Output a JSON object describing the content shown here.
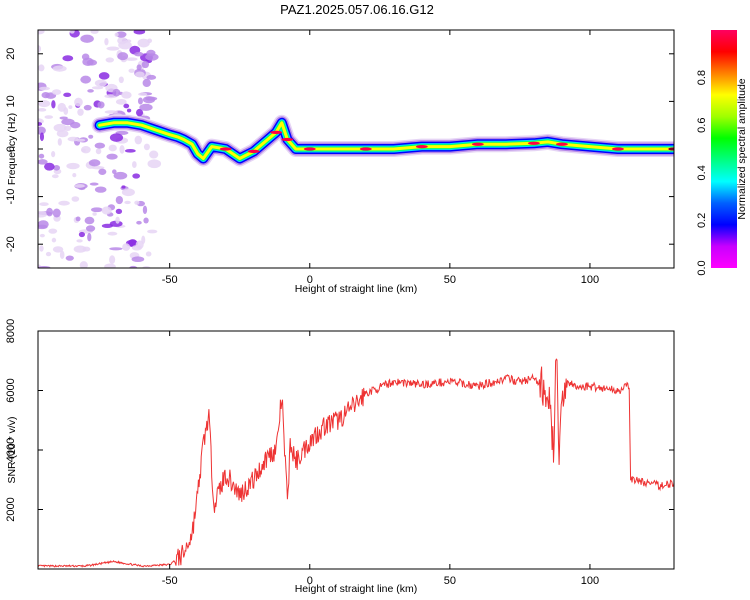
{
  "title": "PAZ1.2025.057.06.16.G12",
  "colors": {
    "snr_line": "#ee3333",
    "colormap": [
      "#ffffff",
      "#e6d5f5",
      "#b888e8",
      "#8a2be2",
      "#0000ff",
      "#00d8ff",
      "#00ff66",
      "#ffff00",
      "#ff6600",
      "#ff0044",
      "#ff00aa"
    ]
  },
  "chart_data": [
    {
      "type": "heatmap",
      "xlabel": "Height of straight line (km)",
      "ylabel": "Frequency (Hz)",
      "xlim": [
        -97,
        130
      ],
      "ylim": [
        -25,
        25
      ],
      "x_ticks": [
        -50,
        0,
        50,
        100
      ],
      "y_ticks": [
        -20,
        -10,
        0,
        10,
        20
      ],
      "colorbar": {
        "label": "Normalized spectral amplitude",
        "range": [
          0,
          1
        ],
        "ticks": [
          0.0,
          0.2,
          0.4,
          0.6,
          0.8
        ]
      },
      "ridge": {
        "x": [
          -75,
          -70,
          -65,
          -60,
          -55,
          -50,
          -47,
          -45,
          -42,
          -40,
          -38,
          -35,
          -30,
          -25,
          -20,
          -15,
          -12,
          -10,
          -8,
          -5,
          0,
          10,
          20,
          30,
          40,
          50,
          60,
          70,
          80,
          85,
          90,
          100,
          110,
          120,
          130
        ],
        "y": [
          5,
          5.5,
          5.5,
          5,
          4,
          3,
          2.5,
          2,
          1,
          -1,
          -2,
          0.5,
          0,
          -2,
          -0.5,
          2,
          3.5,
          5.5,
          2,
          0,
          0,
          0,
          0,
          0,
          0.5,
          0.5,
          1,
          1,
          1.2,
          1.5,
          1,
          0.5,
          0,
          0,
          0
        ]
      },
      "noise_region_x": [
        -97,
        -55
      ]
    },
    {
      "type": "line",
      "xlabel": "Height of straight line (km)",
      "ylabel": "SNR (10 * v/v)",
      "xlim": [
        -97,
        130
      ],
      "ylim": [
        0,
        8000
      ],
      "x_ticks": [
        -50,
        0,
        50,
        100
      ],
      "y_ticks": [
        2000,
        4000,
        6000,
        8000
      ],
      "series": [
        {
          "x": [
            -97,
            -80,
            -70,
            -60,
            -50,
            -45,
            -42,
            -40,
            -38,
            -36,
            -35,
            -34,
            -30,
            -25,
            -20,
            -15,
            -12,
            -10,
            -8,
            -7,
            -5,
            0,
            5,
            10,
            15,
            20,
            25,
            30,
            40,
            50,
            60,
            70,
            75,
            80,
            85,
            87,
            88,
            89,
            90,
            92,
            95,
            100,
            110,
            114,
            114.5,
            115,
            120,
            125,
            130
          ],
          "y": [
            100,
            100,
            250,
            100,
            150,
            500,
            1200,
            2500,
            4200,
            5200,
            3300,
            2200,
            3200,
            2500,
            3000,
            3800,
            4000,
            5800,
            2200,
            4200,
            3600,
            4300,
            4800,
            5000,
            5400,
            5900,
            6100,
            6300,
            6200,
            6300,
            6150,
            6400,
            6300,
            6400,
            6000,
            4000,
            7500,
            3000,
            6000,
            6300,
            6100,
            6150,
            6000,
            6150,
            3100,
            3000,
            2900,
            2800,
            2900
          ]
        }
      ]
    }
  ]
}
